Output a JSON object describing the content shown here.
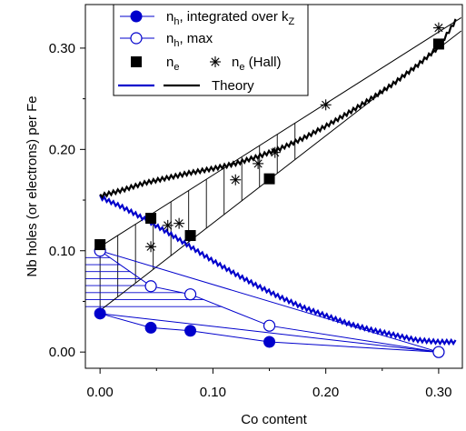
{
  "chart_data": {
    "type": "scatter",
    "xlabel": "Co content",
    "ylabel": "Nb holes (or electrons) per Fe",
    "xlim": [
      -0.013,
      0.321
    ],
    "ylim": [
      -0.016,
      0.343
    ],
    "xticks": [
      0.0,
      0.1,
      0.2,
      0.3
    ],
    "xtick_labels": [
      "0.00",
      "0.10",
      "0.20",
      "0.30"
    ],
    "yticks": [
      0.0,
      0.1,
      0.2,
      0.3
    ],
    "ytick_labels": [
      "0.00",
      "0.10",
      "0.20",
      "0.30"
    ],
    "grid": false,
    "legend_position": "top-left",
    "colors": {
      "blue": "#0000cc",
      "black": "#000000"
    },
    "series": [
      {
        "name": "n_h, integrated over k_Z",
        "label_main": "n",
        "label_sub": "h",
        "label_rest": ", integrated over k",
        "label_sub2": "Z",
        "marker": "filled-circle",
        "color": "#0000cc",
        "connect": true,
        "x": [
          0.0,
          0.045,
          0.08,
          0.15,
          0.3
        ],
        "y": [
          0.038,
          0.024,
          0.021,
          0.01,
          0.0
        ]
      },
      {
        "name": "n_h, max",
        "label_main": "n",
        "label_sub": "h",
        "label_rest": ", max",
        "marker": "open-circle",
        "color": "#0000cc",
        "connect": true,
        "x": [
          0.0,
          0.045,
          0.08,
          0.15,
          0.3
        ],
        "y": [
          0.1,
          0.065,
          0.057,
          0.026,
          0.0
        ]
      },
      {
        "name": "n_e",
        "label_main": "n",
        "label_sub": "e",
        "marker": "filled-square",
        "color": "#000000",
        "connect": false,
        "x": [
          0.0,
          0.045,
          0.08,
          0.15,
          0.3
        ],
        "y": [
          0.106,
          0.132,
          0.115,
          0.171,
          0.304
        ]
      },
      {
        "name": "n_e (Hall)",
        "label_main": "n",
        "label_sub": "e",
        "label_rest": " (Hall)",
        "marker": "asterisk",
        "color": "#000000",
        "connect": false,
        "x": [
          0.045,
          0.06,
          0.07,
          0.12,
          0.14,
          0.155,
          0.2,
          0.3
        ],
        "y": [
          0.104,
          0.125,
          0.127,
          0.17,
          0.186,
          0.197,
          0.244,
          0.32
        ]
      }
    ],
    "theory_label": "Theory",
    "theory": [
      {
        "name": "Theory (holes)",
        "color": "#0000cc",
        "x": [
          0.0,
          0.02,
          0.04,
          0.06,
          0.08,
          0.1,
          0.12,
          0.14,
          0.16,
          0.18,
          0.2,
          0.22,
          0.24,
          0.26,
          0.28,
          0.3,
          0.315
        ],
        "y": [
          0.153,
          0.143,
          0.131,
          0.118,
          0.104,
          0.09,
          0.077,
          0.065,
          0.054,
          0.044,
          0.036,
          0.028,
          0.022,
          0.017,
          0.012,
          0.01,
          0.01
        ]
      },
      {
        "name": "Theory (electrons)",
        "color": "#000000",
        "x": [
          0.0,
          0.02,
          0.04,
          0.06,
          0.08,
          0.1,
          0.12,
          0.14,
          0.16,
          0.18,
          0.2,
          0.22,
          0.24,
          0.26,
          0.28,
          0.3,
          0.315
        ],
        "y": [
          0.154,
          0.16,
          0.167,
          0.172,
          0.177,
          0.181,
          0.186,
          0.193,
          0.201,
          0.211,
          0.223,
          0.236,
          0.25,
          0.265,
          0.282,
          0.301,
          0.327
        ]
      }
    ],
    "guide_lines": [
      {
        "color": "#000000",
        "x": [
          0.0,
          0.32
        ],
        "y": [
          0.041,
          0.317
        ]
      },
      {
        "color": "#000000",
        "x": [
          0.0,
          0.32
        ],
        "y": [
          0.104,
          0.33
        ]
      },
      {
        "color": "#0000cc",
        "x": [
          0.0,
          0.3
        ],
        "y": [
          0.1,
          0.0
        ]
      },
      {
        "color": "#0000cc",
        "x": [
          0.0,
          0.3
        ],
        "y": [
          0.038,
          0.0
        ]
      }
    ]
  }
}
